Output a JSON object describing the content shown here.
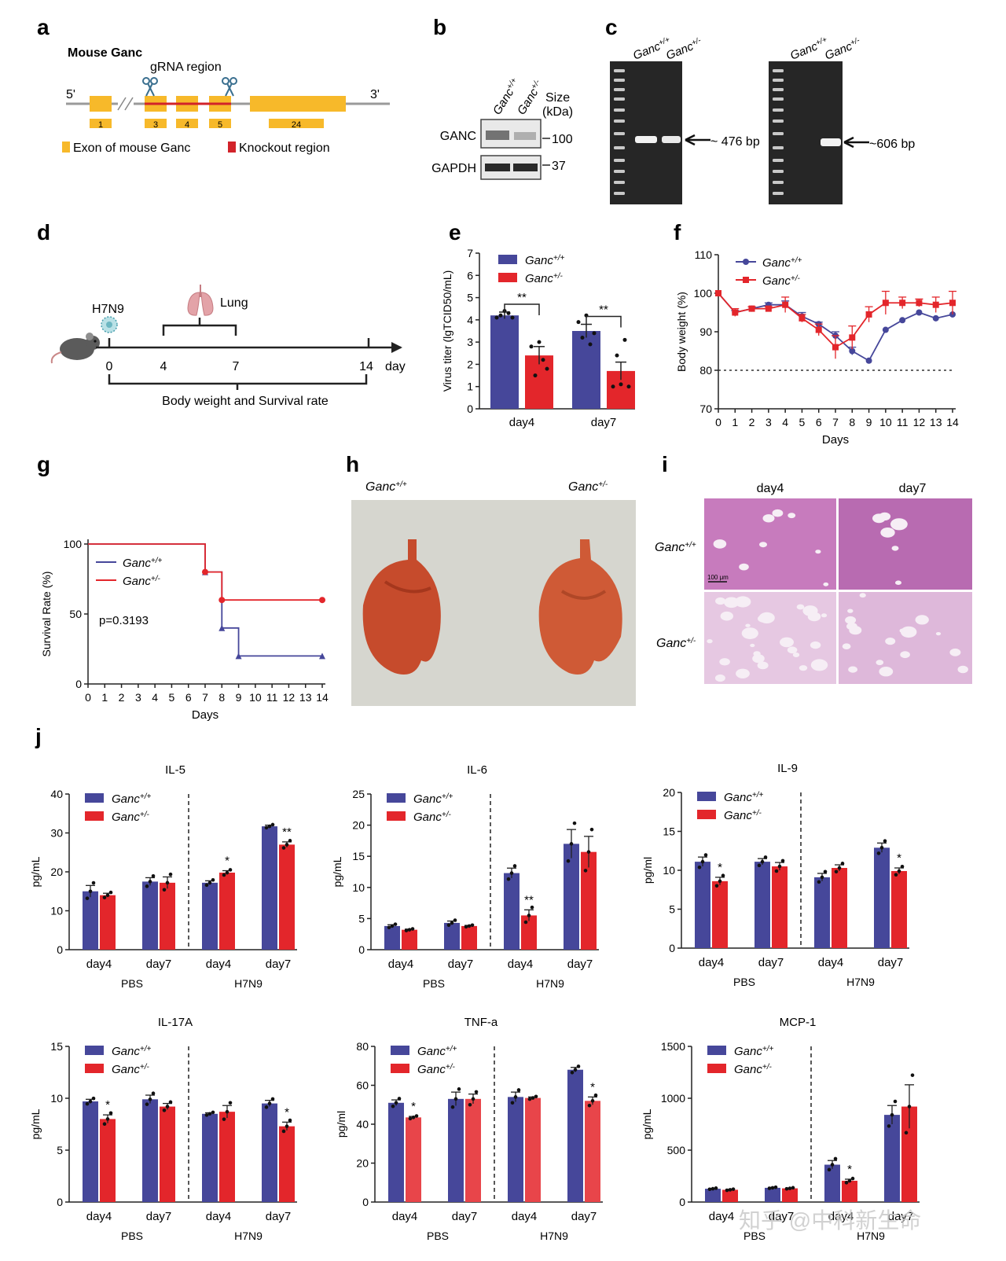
{
  "colors": {
    "wt": "#46479a",
    "het": "#e3262b",
    "het_light": "#e8454a",
    "exon": "#f7b92a",
    "ko": "#d2232a",
    "gel": "#262626",
    "ihc": "#c77bbd",
    "lung": "#c64b2c"
  },
  "panel_letters": [
    "a",
    "b",
    "c",
    "d",
    "e",
    "f",
    "g",
    "h",
    "i",
    "j"
  ],
  "geno": {
    "wt": "Ganc+/+",
    "het": "Ganc+/-",
    "wt_sup": "+/+",
    "het_sup": "+/-",
    "base": "Ganc"
  },
  "panel_a": {
    "title": "Mouse Ganc",
    "grna_label": "gRNA region",
    "five": "5'",
    "three": "3'",
    "exons": [
      "1",
      "3",
      "4",
      "5",
      "24"
    ],
    "legend_exon": "Exon of  mouse Ganc",
    "legend_ko": "Knockout region",
    "scissor_icon": "scissors-icon"
  },
  "panel_b": {
    "size_label": "Size",
    "kda_label": "(kDa)",
    "rows": [
      {
        "label": "GANC",
        "marker": "100"
      },
      {
        "label": "GAPDH",
        "marker": "37"
      }
    ]
  },
  "panel_c": {
    "bands": [
      "~ 476 bp",
      "~606 bp"
    ]
  },
  "panel_d": {
    "virus": "H7N9",
    "organ": "Lung",
    "ticks": [
      "0",
      "4",
      "7",
      "14"
    ],
    "unit": "day",
    "bottom_label": "Body weight and Survival rate",
    "icons": [
      "mouse-icon",
      "virus-icon",
      "lung-icon"
    ]
  },
  "panel_h": {
    "left_label": "Ganc+/+",
    "right_label": "Ganc+/-"
  },
  "panel_i": {
    "col_labels": [
      "day4",
      "day7"
    ],
    "row_labels": [
      "Ganc+/+",
      "Ganc+/-"
    ],
    "scale_bar": "100 μm"
  },
  "watermark": "知乎 @中科新生命",
  "chart_data": [
    {
      "id": "e",
      "type": "bar",
      "title": "",
      "ylabel": "Virus titer (lgTCID50/mL)",
      "ylim": [
        0,
        7
      ],
      "yticks": [
        0,
        1,
        2,
        3,
        4,
        5,
        6,
        7
      ],
      "categories": [
        "day4",
        "day7"
      ],
      "series": [
        {
          "name": "Ganc+/+",
          "values": [
            4.2,
            3.5
          ],
          "err": [
            0.15,
            0.3
          ],
          "points": [
            [
              4.1,
              4.2,
              4.4,
              4.3,
              4.1
            ],
            [
              3.9,
              3.2,
              4.2,
              2.9,
              3.4
            ]
          ]
        },
        {
          "name": "Ganc+/-",
          "values": [
            2.4,
            1.7
          ],
          "err": [
            0.4,
            0.4
          ],
          "points": [
            [
              2.8,
              1.5,
              3.0,
              2.2,
              1.8
            ],
            [
              1.0,
              2.4,
              1.1,
              3.1,
              1.0
            ]
          ]
        }
      ],
      "annotations": [
        "**",
        "**"
      ]
    },
    {
      "id": "f",
      "type": "line",
      "title": "",
      "xlabel": "Days",
      "ylabel": "Body weight (%)",
      "ylim": [
        70,
        110
      ],
      "yticks": [
        70,
        80,
        90,
        100,
        110
      ],
      "x": [
        0,
        1,
        2,
        3,
        4,
        5,
        6,
        7,
        8,
        9,
        10,
        11,
        12,
        13,
        14
      ],
      "series": [
        {
          "name": "Ganc+/+",
          "values": [
            100,
            95,
            96,
            97,
            97,
            94,
            92,
            89,
            85,
            82.5,
            90.5,
            93,
            95,
            93.5,
            94.5
          ],
          "err": [
            0,
            0.5,
            0.5,
            0.5,
            1,
            1,
            0.5,
            1,
            1,
            0,
            0,
            0,
            0,
            0,
            0
          ]
        },
        {
          "name": "Ganc+/-",
          "values": [
            100,
            95,
            96,
            96,
            97,
            93.5,
            90.5,
            86,
            88.5,
            94.5,
            97.5,
            97.5,
            97.5,
            97,
            97.5
          ],
          "err": [
            0,
            1,
            0.5,
            0.5,
            2,
            1,
            1.5,
            3,
            3,
            2,
            3,
            1.5,
            1,
            2,
            3
          ]
        }
      ],
      "reference_line": 80
    },
    {
      "id": "g",
      "type": "line",
      "title": "",
      "xlabel": "Days",
      "ylabel": "Survival Rate (%)",
      "ylim": [
        0,
        100
      ],
      "yticks": [
        0,
        50,
        100
      ],
      "x": [
        0,
        1,
        2,
        3,
        4,
        5,
        6,
        7,
        8,
        9,
        10,
        11,
        12,
        13,
        14
      ],
      "series": [
        {
          "name": "Ganc+/+",
          "steps": [
            [
              0,
              100
            ],
            [
              7,
              80
            ],
            [
              8,
              40
            ],
            [
              9,
              20
            ],
            [
              14,
              20
            ]
          ]
        },
        {
          "name": "Ganc+/-",
          "steps": [
            [
              0,
              100
            ],
            [
              7,
              80
            ],
            [
              8,
              60
            ],
            [
              14,
              60
            ]
          ]
        }
      ],
      "annotation": "p=0.3193"
    },
    {
      "id": "IL-5",
      "type": "bar",
      "title": "IL-5",
      "ylabel": "pg/mL",
      "ylim": [
        0,
        40
      ],
      "yticks": [
        0,
        10,
        20,
        30,
        40
      ],
      "categories": [
        "day4",
        "day7",
        "day4",
        "day7"
      ],
      "groups": [
        "PBS",
        "H7N9"
      ],
      "series": [
        {
          "name": "Ganc+/+",
          "values": [
            15,
            17.5,
            17.2,
            31.7
          ],
          "err": [
            1.5,
            1,
            0.5,
            0.3
          ]
        },
        {
          "name": "Ganc+/-",
          "values": [
            14,
            17.2,
            19.8,
            27
          ],
          "err": [
            0.5,
            1.5,
            0.5,
            0.7
          ]
        }
      ],
      "stars": [
        "",
        "",
        "*",
        "**"
      ]
    },
    {
      "id": "IL-6",
      "type": "bar",
      "title": "IL-6",
      "ylabel": "pg/mL",
      "ylim": [
        0,
        25
      ],
      "yticks": [
        0,
        5,
        10,
        15,
        20,
        25
      ],
      "categories": [
        "day4",
        "day7",
        "day4",
        "day7"
      ],
      "groups": [
        "PBS",
        "H7N9"
      ],
      "series": [
        {
          "name": "Ganc+/+",
          "values": [
            3.8,
            4.3,
            12.3,
            17
          ],
          "err": [
            0.2,
            0.3,
            0.8,
            2.3
          ]
        },
        {
          "name": "Ganc+/-",
          "values": [
            3.2,
            3.8,
            5.5,
            15.7
          ],
          "err": [
            0.1,
            0.1,
            0.9,
            2.5
          ]
        }
      ],
      "stars": [
        "",
        "",
        "**",
        ""
      ]
    },
    {
      "id": "IL-9",
      "type": "bar",
      "title": "IL-9",
      "ylabel": "pg/ml",
      "ylim": [
        0,
        20
      ],
      "yticks": [
        0,
        5,
        10,
        15,
        20
      ],
      "categories": [
        "day4",
        "day7",
        "day4",
        "day7"
      ],
      "groups": [
        "PBS",
        "H7N9"
      ],
      "series": [
        {
          "name": "Ganc+/+",
          "values": [
            11.1,
            11.1,
            9.1,
            12.9
          ],
          "err": [
            0.6,
            0.4,
            0.5,
            0.6
          ]
        },
        {
          "name": "Ganc+/-",
          "values": [
            8.6,
            10.5,
            10.3,
            9.9
          ],
          "err": [
            0.5,
            0.5,
            0.4,
            0.4
          ]
        }
      ],
      "stars": [
        "*",
        "",
        "",
        "*"
      ]
    },
    {
      "id": "IL-17A",
      "type": "bar",
      "title": "IL-17A",
      "ylabel": "pg/mL",
      "ylim": [
        0,
        15
      ],
      "yticks": [
        0,
        5,
        10,
        15
      ],
      "categories": [
        "day4",
        "day7",
        "day4",
        "day7"
      ],
      "groups": [
        "PBS",
        "H7N9"
      ],
      "series": [
        {
          "name": "Ganc+/+",
          "values": [
            9.7,
            9.9,
            8.5,
            9.5
          ],
          "err": [
            0.2,
            0.4,
            0.1,
            0.3
          ]
        },
        {
          "name": "Ganc+/-",
          "values": [
            8.0,
            9.2,
            8.7,
            7.3
          ],
          "err": [
            0.4,
            0.3,
            0.6,
            0.4
          ]
        }
      ],
      "stars": [
        "*",
        "",
        "",
        "*"
      ]
    },
    {
      "id": "TNF-a",
      "type": "bar",
      "title": "TNF-a",
      "ylabel": "pg/ml",
      "ylim": [
        0,
        80
      ],
      "yticks": [
        0,
        20,
        40,
        60,
        80
      ],
      "categories": [
        "day4",
        "day7",
        "day4",
        "day7"
      ],
      "groups": [
        "PBS",
        "H7N9"
      ],
      "series": [
        {
          "name": "Ganc+/+",
          "values": [
            51,
            53,
            54,
            68
          ],
          "err": [
            1.5,
            3.5,
            2.5,
            1.2
          ]
        },
        {
          "name": "Ganc+/-",
          "values": [
            43.5,
            53,
            53.5,
            52
          ],
          "err": [
            0.5,
            2.5,
            0.5,
            2
          ]
        }
      ],
      "stars": [
        "*",
        "",
        "",
        "*"
      ]
    },
    {
      "id": "MCP-1",
      "type": "bar",
      "title": "MCP-1",
      "ylabel": "pg/mL",
      "ylim": [
        0,
        1500
      ],
      "yticks": [
        0,
        500,
        1000,
        1500
      ],
      "categories": [
        "day4",
        "day7",
        "day4",
        "day7"
      ],
      "groups": [
        "PBS",
        "H7N9"
      ],
      "series": [
        {
          "name": "Ganc+/+",
          "values": [
            128,
            137,
            360,
            840
          ],
          "err": [
            4,
            4,
            40,
            90
          ]
        },
        {
          "name": "Ganc+/-",
          "values": [
            118,
            132,
            205,
            920
          ],
          "err": [
            4,
            4,
            15,
            210
          ]
        }
      ],
      "stars": [
        "",
        "",
        "*",
        ""
      ]
    }
  ]
}
